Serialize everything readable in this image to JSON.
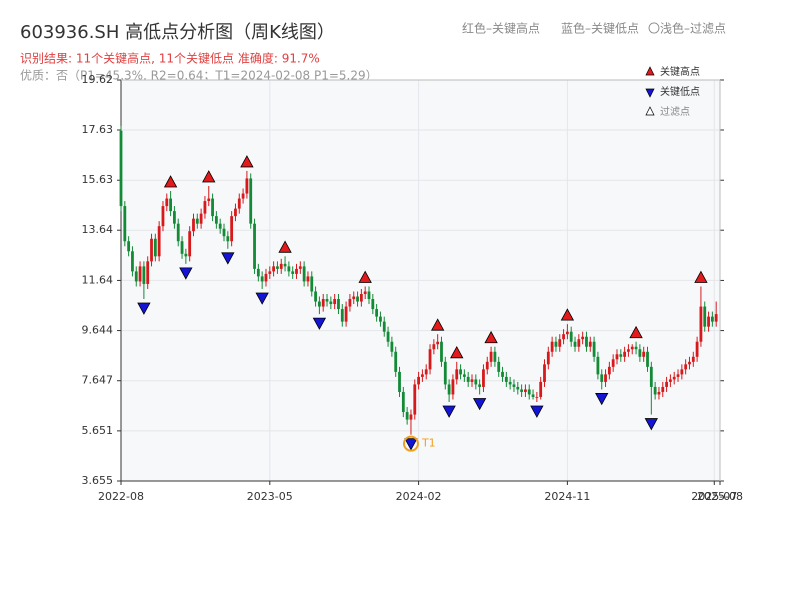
{
  "chart_data": {
    "type": "candlestick",
    "title": "603936.SH 高低点分析图（周K线图）",
    "subtitle": "识别结果: 11个关键高点, 11个关键低点   准确度: 91.7%",
    "note": "优质：否（P1=45.3%, R2=0.64；T1=2024-02-08 P1=5.29）",
    "top_legend": [
      "红色–关键高点",
      "蓝色–关键低点",
      "〇浅色–过滤点"
    ],
    "legend": {
      "high": "关键高点",
      "low": "关键低点",
      "filtered": "过滤点"
    },
    "up_color": "#d7191c",
    "down_color": "#138a36",
    "high_color": "#e31a1c",
    "low_color": "#1414d6",
    "ylim": [
      3.655,
      19.62
    ],
    "yticks": [
      3.655,
      5.651,
      7.647,
      9.644,
      11.64,
      13.64,
      15.63,
      17.63,
      19.62
    ],
    "xlim": [
      0,
      157
    ],
    "xticks": [
      {
        "value": 0,
        "label": "2022-08"
      },
      {
        "value": 39,
        "label": "2023-05"
      },
      {
        "value": 78,
        "label": "2024-02"
      },
      {
        "value": 117,
        "label": "2024-11"
      },
      {
        "value": 155.5,
        "label": "2025-07"
      },
      {
        "value": 157,
        "label": "2025-08"
      }
    ],
    "grid": true,
    "ohlc": [
      [
        17.6,
        17.8,
        14.4,
        14.6
      ],
      [
        14.6,
        14.8,
        13.0,
        13.2
      ],
      [
        13.2,
        13.4,
        12.6,
        12.8
      ],
      [
        12.8,
        13.0,
        11.8,
        12.0
      ],
      [
        12.0,
        12.2,
        11.4,
        11.6
      ],
      [
        11.6,
        12.4,
        11.4,
        12.2
      ],
      [
        12.2,
        12.4,
        10.9,
        11.5
      ],
      [
        11.5,
        12.6,
        11.3,
        12.4
      ],
      [
        12.4,
        13.5,
        12.2,
        13.3
      ],
      [
        13.3,
        13.5,
        12.4,
        12.6
      ],
      [
        12.6,
        14.0,
        12.4,
        13.8
      ],
      [
        13.8,
        14.8,
        13.6,
        14.6
      ],
      [
        14.6,
        15.1,
        14.4,
        14.9
      ],
      [
        14.9,
        15.2,
        14.2,
        14.4
      ],
      [
        14.4,
        14.6,
        13.7,
        13.9
      ],
      [
        13.9,
        14.1,
        13.0,
        13.2
      ],
      [
        13.2,
        13.4,
        12.5,
        12.7
      ],
      [
        12.7,
        12.9,
        12.3,
        12.6
      ],
      [
        12.6,
        13.8,
        12.4,
        13.6
      ],
      [
        13.6,
        14.3,
        13.4,
        14.1
      ],
      [
        14.1,
        14.3,
        13.7,
        13.9
      ],
      [
        13.9,
        14.5,
        13.7,
        14.3
      ],
      [
        14.3,
        15.0,
        14.1,
        14.8
      ],
      [
        14.8,
        15.4,
        14.6,
        14.9
      ],
      [
        14.9,
        15.1,
        14.0,
        14.2
      ],
      [
        14.2,
        14.4,
        13.7,
        13.9
      ],
      [
        13.9,
        14.1,
        13.5,
        13.7
      ],
      [
        13.7,
        13.9,
        13.2,
        13.4
      ],
      [
        13.4,
        13.6,
        12.9,
        13.2
      ],
      [
        13.2,
        14.4,
        13.0,
        14.2
      ],
      [
        14.2,
        14.7,
        14.0,
        14.5
      ],
      [
        14.5,
        15.1,
        14.3,
        14.9
      ],
      [
        14.9,
        15.3,
        14.7,
        15.1
      ],
      [
        15.1,
        16.0,
        14.9,
        15.7
      ],
      [
        15.7,
        15.9,
        13.7,
        13.9
      ],
      [
        13.9,
        14.1,
        11.9,
        12.1
      ],
      [
        12.1,
        12.3,
        11.6,
        11.8
      ],
      [
        11.8,
        12.0,
        11.3,
        11.6
      ],
      [
        11.6,
        12.1,
        11.4,
        11.9
      ],
      [
        11.9,
        12.2,
        11.7,
        12.0
      ],
      [
        12.0,
        12.4,
        11.8,
        12.2
      ],
      [
        12.2,
        12.4,
        11.9,
        12.1
      ],
      [
        12.1,
        12.5,
        11.9,
        12.3
      ],
      [
        12.3,
        12.6,
        12.0,
        12.2
      ],
      [
        12.2,
        12.4,
        11.8,
        12.0
      ],
      [
        12.0,
        12.2,
        11.7,
        11.9
      ],
      [
        11.9,
        12.3,
        11.7,
        12.1
      ],
      [
        12.1,
        12.4,
        11.9,
        12.2
      ],
      [
        12.2,
        12.4,
        11.4,
        11.6
      ],
      [
        11.6,
        12.0,
        11.4,
        11.8
      ],
      [
        11.8,
        12.0,
        11.0,
        11.2
      ],
      [
        11.2,
        11.4,
        10.6,
        10.8
      ],
      [
        10.8,
        11.0,
        10.3,
        10.6
      ],
      [
        10.6,
        11.1,
        10.4,
        10.9
      ],
      [
        10.9,
        11.1,
        10.6,
        10.8
      ],
      [
        10.8,
        11.0,
        10.5,
        10.7
      ],
      [
        10.7,
        11.1,
        10.5,
        10.9
      ],
      [
        10.9,
        11.1,
        10.3,
        10.5
      ],
      [
        10.5,
        10.7,
        9.8,
        10.0
      ],
      [
        10.0,
        10.8,
        9.8,
        10.6
      ],
      [
        10.6,
        11.1,
        10.4,
        10.9
      ],
      [
        10.9,
        11.2,
        10.7,
        11.0
      ],
      [
        11.0,
        11.2,
        10.6,
        10.8
      ],
      [
        10.8,
        11.3,
        10.6,
        11.1
      ],
      [
        11.1,
        11.4,
        10.9,
        11.2
      ],
      [
        11.2,
        11.4,
        10.7,
        10.9
      ],
      [
        10.9,
        11.1,
        10.3,
        10.5
      ],
      [
        10.5,
        10.7,
        10.0,
        10.2
      ],
      [
        10.2,
        10.4,
        9.8,
        10.0
      ],
      [
        10.0,
        10.2,
        9.4,
        9.6
      ],
      [
        9.6,
        9.8,
        9.0,
        9.2
      ],
      [
        9.2,
        9.4,
        8.6,
        8.8
      ],
      [
        8.8,
        9.0,
        7.8,
        8.0
      ],
      [
        8.0,
        8.2,
        7.0,
        7.2
      ],
      [
        7.2,
        7.4,
        6.2,
        6.4
      ],
      [
        6.4,
        6.6,
        5.9,
        6.1
      ],
      [
        6.1,
        6.5,
        5.5,
        6.3
      ],
      [
        6.3,
        7.7,
        6.1,
        7.5
      ],
      [
        7.5,
        8.0,
        7.3,
        7.8
      ],
      [
        7.8,
        8.1,
        7.6,
        7.9
      ],
      [
        7.9,
        8.3,
        7.7,
        8.1
      ],
      [
        8.1,
        9.1,
        7.9,
        8.9
      ],
      [
        8.9,
        9.3,
        8.7,
        9.1
      ],
      [
        9.1,
        9.5,
        8.9,
        9.2
      ],
      [
        9.2,
        9.4,
        8.2,
        8.4
      ],
      [
        8.4,
        8.6,
        7.3,
        7.5
      ],
      [
        7.5,
        7.7,
        6.8,
        7.1
      ],
      [
        7.1,
        7.9,
        6.9,
        7.7
      ],
      [
        7.7,
        8.4,
        7.5,
        8.1
      ],
      [
        8.1,
        8.3,
        7.7,
        7.9
      ],
      [
        7.9,
        8.1,
        7.6,
        7.8
      ],
      [
        7.8,
        8.0,
        7.4,
        7.6
      ],
      [
        7.6,
        7.9,
        7.4,
        7.7
      ],
      [
        7.7,
        7.9,
        7.3,
        7.5
      ],
      [
        7.5,
        7.7,
        7.1,
        7.4
      ],
      [
        7.4,
        8.3,
        7.2,
        8.1
      ],
      [
        8.1,
        8.6,
        7.9,
        8.4
      ],
      [
        8.4,
        9.0,
        8.2,
        8.8
      ],
      [
        8.8,
        9.0,
        8.2,
        8.4
      ],
      [
        8.4,
        8.6,
        7.8,
        8.0
      ],
      [
        8.0,
        8.2,
        7.6,
        7.8
      ],
      [
        7.8,
        8.0,
        7.4,
        7.6
      ],
      [
        7.6,
        7.8,
        7.3,
        7.5
      ],
      [
        7.5,
        7.7,
        7.2,
        7.4
      ],
      [
        7.4,
        7.6,
        7.1,
        7.3
      ],
      [
        7.3,
        7.5,
        7.0,
        7.2
      ],
      [
        7.2,
        7.5,
        7.0,
        7.3
      ],
      [
        7.3,
        7.5,
        6.9,
        7.1
      ],
      [
        7.1,
        7.3,
        6.9,
        7.0
      ],
      [
        7.0,
        7.2,
        6.8,
        7.0
      ],
      [
        7.0,
        7.8,
        6.9,
        7.6
      ],
      [
        7.6,
        8.5,
        7.4,
        8.3
      ],
      [
        8.3,
        9.0,
        8.1,
        8.8
      ],
      [
        8.8,
        9.4,
        8.6,
        9.2
      ],
      [
        9.2,
        9.4,
        8.8,
        9.0
      ],
      [
        9.0,
        9.5,
        8.8,
        9.3
      ],
      [
        9.3,
        9.7,
        9.1,
        9.5
      ],
      [
        9.5,
        9.9,
        9.3,
        9.6
      ],
      [
        9.6,
        9.8,
        9.0,
        9.2
      ],
      [
        9.2,
        9.4,
        8.8,
        9.0
      ],
      [
        9.0,
        9.5,
        8.8,
        9.3
      ],
      [
        9.3,
        9.6,
        9.1,
        9.4
      ],
      [
        9.4,
        9.6,
        8.8,
        9.0
      ],
      [
        9.0,
        9.4,
        8.8,
        9.2
      ],
      [
        9.2,
        9.4,
        8.4,
        8.6
      ],
      [
        8.6,
        8.8,
        7.7,
        7.9
      ],
      [
        7.9,
        8.1,
        7.3,
        7.6
      ],
      [
        7.6,
        8.1,
        7.4,
        7.9
      ],
      [
        7.9,
        8.4,
        7.7,
        8.2
      ],
      [
        8.2,
        8.7,
        8.0,
        8.5
      ],
      [
        8.5,
        8.9,
        8.3,
        8.7
      ],
      [
        8.7,
        8.9,
        8.4,
        8.6
      ],
      [
        8.6,
        9.0,
        8.4,
        8.8
      ],
      [
        8.8,
        9.1,
        8.6,
        8.9
      ],
      [
        8.9,
        9.1,
        8.7,
        9.0
      ],
      [
        9.0,
        9.2,
        8.7,
        8.9
      ],
      [
        8.9,
        9.1,
        8.4,
        8.6
      ],
      [
        8.6,
        9.0,
        8.4,
        8.8
      ],
      [
        8.8,
        9.0,
        8.0,
        8.2
      ],
      [
        8.2,
        8.4,
        6.3,
        7.4
      ],
      [
        7.4,
        7.6,
        6.9,
        7.1
      ],
      [
        7.1,
        7.4,
        6.9,
        7.2
      ],
      [
        7.2,
        7.6,
        7.0,
        7.4
      ],
      [
        7.4,
        7.8,
        7.2,
        7.6
      ],
      [
        7.6,
        7.9,
        7.4,
        7.7
      ],
      [
        7.7,
        8.0,
        7.5,
        7.8
      ],
      [
        7.8,
        8.1,
        7.6,
        7.9
      ],
      [
        7.9,
        8.3,
        7.7,
        8.1
      ],
      [
        8.1,
        8.5,
        7.9,
        8.3
      ],
      [
        8.3,
        8.6,
        8.1,
        8.4
      ],
      [
        8.4,
        8.8,
        8.2,
        8.6
      ],
      [
        8.6,
        9.4,
        8.4,
        9.2
      ],
      [
        9.2,
        11.4,
        9.0,
        10.6
      ],
      [
        10.6,
        10.8,
        9.6,
        9.8
      ],
      [
        9.8,
        10.4,
        9.6,
        10.2
      ],
      [
        10.2,
        10.4,
        9.8,
        10.0
      ],
      [
        10.0,
        10.8,
        9.8,
        10.3
      ]
    ],
    "key_highs": [
      13,
      23,
      33,
      43,
      64,
      83,
      88,
      97,
      117,
      135,
      152
    ],
    "key_lows": [
      6,
      17,
      28,
      37,
      52,
      76,
      86,
      94,
      109,
      126,
      139
    ],
    "t1": {
      "index": 76,
      "label": "T1",
      "color": "#f0a020"
    }
  }
}
